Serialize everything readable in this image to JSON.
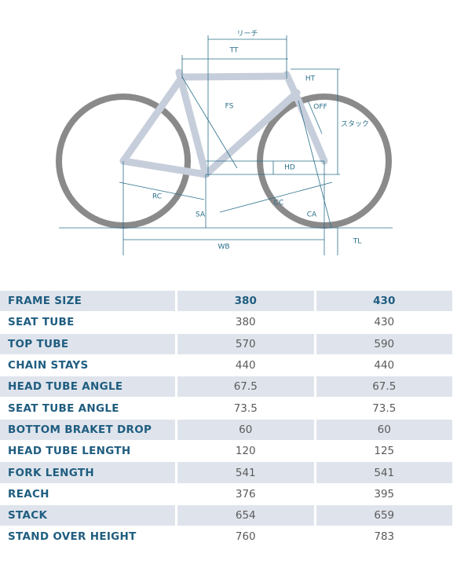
{
  "diagram": {
    "labels": {
      "reach": "リーチ",
      "tt": "TT",
      "ht": "HT",
      "fs": "FS",
      "off": "OFF",
      "stack": "スタック",
      "hd": "HD",
      "rc": "RC",
      "sa": "SA",
      "cc": "CC",
      "ca": "CA",
      "wb": "WB",
      "tl": "TL"
    }
  },
  "table": {
    "header": [
      "FRAME SIZE",
      380,
      430
    ],
    "rows": [
      [
        "SEAT TUBE",
        380,
        430
      ],
      [
        "TOP TUBE",
        570,
        590
      ],
      [
        "CHAIN STAYS",
        440,
        440
      ],
      [
        "HEAD TUBE ANGLE",
        67.5,
        67.5
      ],
      [
        "SEAT TUBE ANGLE",
        73.5,
        73.5
      ],
      [
        "BOTTOM BRAKET DROP",
        60,
        60
      ],
      [
        "HEAD TUBE LENGTH",
        120,
        125
      ],
      [
        "FORK LENGTH",
        541,
        541
      ],
      [
        "REACH",
        376,
        395
      ],
      [
        "STACK",
        654,
        659
      ],
      [
        "STAND OVER HEIGHT",
        760,
        783
      ]
    ]
  }
}
